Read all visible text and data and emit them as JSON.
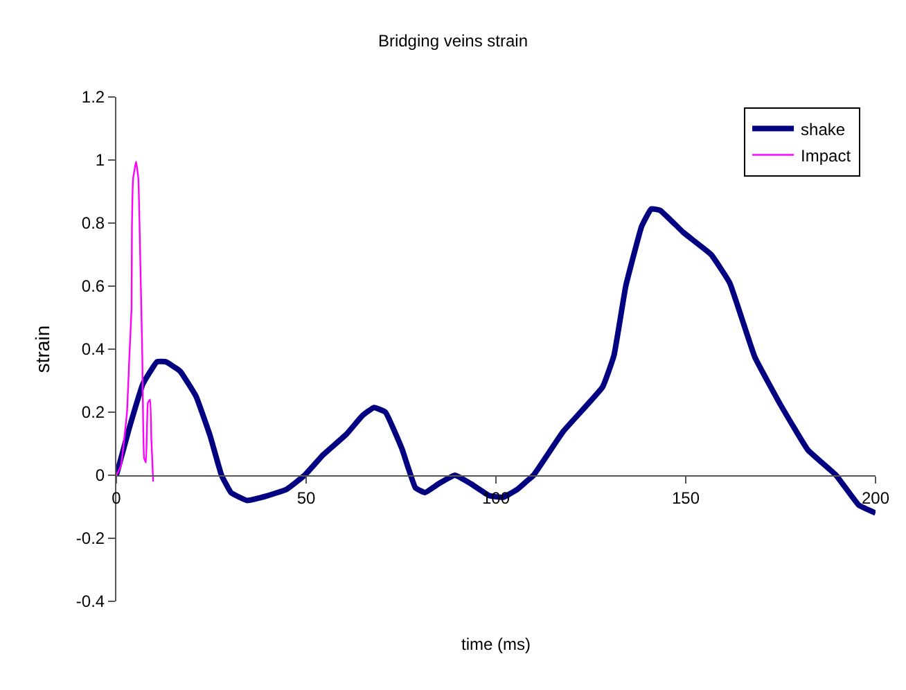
{
  "chart_data": {
    "type": "line",
    "title": "Bridging veins strain",
    "xlabel": "time (ms)",
    "ylabel": "strain",
    "xlim": [
      0,
      200
    ],
    "xticks": [
      0,
      50,
      100,
      150,
      200
    ],
    "ylim": [
      -0.4,
      1.2
    ],
    "yticks": [
      -0.4,
      -0.2,
      0,
      0.2,
      0.4,
      0.6,
      0.8,
      1,
      1.2
    ],
    "legend": "top right",
    "marker": "none",
    "line_style": "solid",
    "series": [
      {
        "name": "shake",
        "color": "#000080",
        "x": [
          0,
          3.4,
          7,
          10.7,
          13,
          16.8,
          21,
          24.7,
          27.7,
          30.2,
          34.4,
          39.8,
          44.8,
          49.6,
          54.5,
          60.6,
          64.9,
          67.9,
          70.9,
          75.2,
          78.8,
          81.3,
          84.9,
          89.2,
          93.4,
          98.3,
          101.9,
          105.6,
          108,
          109.9,
          117.8,
          128.1,
          131.1,
          134.2,
          138.4,
          140.9,
          143.3,
          149.4,
          156.7,
          161.6,
          168.2,
          174.9,
          182.2,
          189.6,
          195.6,
          200
        ],
        "values": [
          0,
          0.15,
          0.29,
          0.36,
          0.36,
          0.33,
          0.25,
          0.125,
          0,
          -0.055,
          -0.08,
          -0.065,
          -0.045,
          0,
          0.065,
          0.13,
          0.19,
          0.215,
          0.2,
          0.085,
          -0.04,
          -0.055,
          -0.027,
          0,
          -0.027,
          -0.065,
          -0.07,
          -0.045,
          -0.02,
          0,
          0.14,
          0.28,
          0.38,
          0.6,
          0.79,
          0.845,
          0.84,
          0.77,
          0.7,
          0.61,
          0.375,
          0.225,
          0.08,
          0,
          -0.095,
          -0.12
        ]
      },
      {
        "name": "Impact",
        "color": "#ff00ff",
        "x": [
          0,
          1.2,
          2.8,
          3.4,
          4,
          4.1,
          4.4,
          5.2,
          5.8,
          6.2,
          6.8,
          7.3,
          7.8,
          8.3,
          8.9,
          9.2,
          9.7
        ],
        "values": [
          0,
          0.03,
          0.2,
          0.37,
          0.53,
          0.78,
          0.94,
          0.995,
          0.94,
          0.74,
          0.4,
          0.055,
          0.04,
          0.23,
          0.24,
          0.12,
          -0.02
        ]
      }
    ]
  }
}
